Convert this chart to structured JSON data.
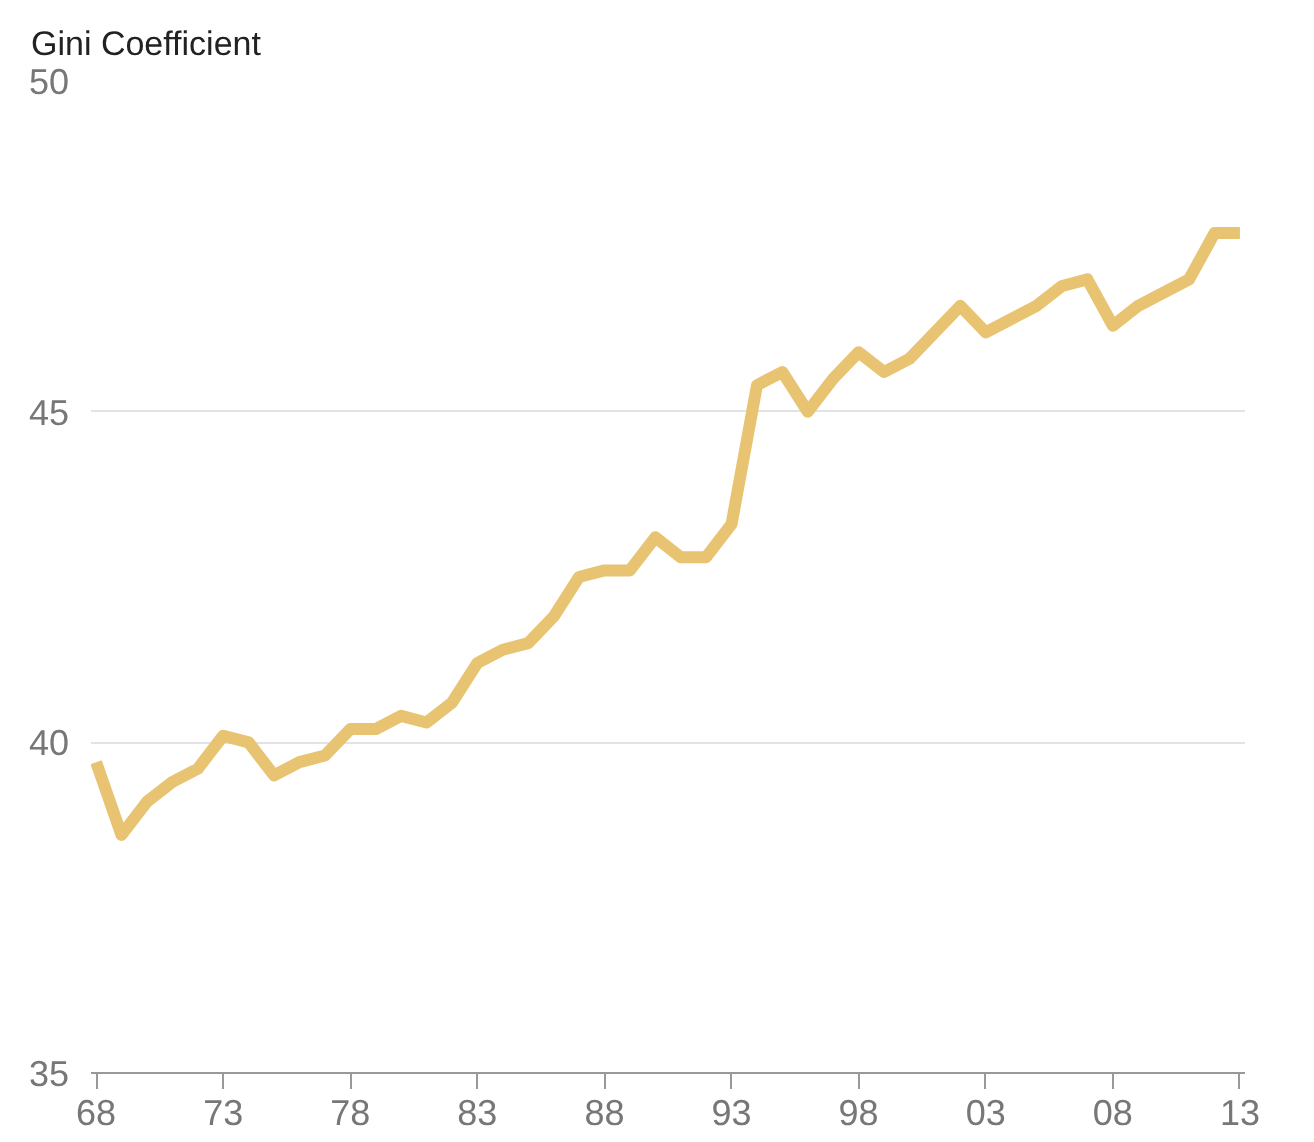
{
  "chart_data": {
    "type": "line",
    "ylabel": "Gini Coefficient",
    "x": [
      1968,
      1969,
      1970,
      1971,
      1972,
      1973,
      1974,
      1975,
      1976,
      1977,
      1978,
      1979,
      1980,
      1981,
      1982,
      1983,
      1984,
      1985,
      1986,
      1987,
      1988,
      1989,
      1990,
      1991,
      1992,
      1993,
      1994,
      1995,
      1996,
      1997,
      1998,
      1999,
      2000,
      2001,
      2002,
      2003,
      2004,
      2005,
      2006,
      2007,
      2008,
      2009,
      2010,
      2011,
      2012,
      2013
    ],
    "series": [
      {
        "color": "#e8c472",
        "values": [
          39.7,
          38.6,
          39.1,
          39.4,
          39.6,
          40.1,
          40.0,
          39.5,
          39.7,
          39.8,
          40.2,
          40.2,
          40.4,
          40.3,
          40.6,
          41.2,
          41.4,
          41.5,
          41.9,
          42.5,
          42.6,
          42.6,
          43.1,
          42.8,
          42.8,
          43.3,
          45.4,
          45.6,
          45.0,
          45.5,
          45.9,
          45.6,
          45.8,
          46.2,
          46.6,
          46.2,
          46.4,
          46.6,
          46.9,
          47.0,
          46.3,
          46.6,
          46.8,
          47.0,
          47.7,
          47.7
        ]
      }
    ],
    "xlim": [
      1967.8,
      2013.2
    ],
    "ylim": [
      35,
      50
    ],
    "xticks": [
      {
        "value": 1968,
        "label": "68"
      },
      {
        "value": 1973,
        "label": "73"
      },
      {
        "value": 1978,
        "label": "78"
      },
      {
        "value": 1983,
        "label": "83"
      },
      {
        "value": 1988,
        "label": "88"
      },
      {
        "value": 1993,
        "label": "93"
      },
      {
        "value": 1998,
        "label": "98"
      },
      {
        "value": 2003,
        "label": "03"
      },
      {
        "value": 2008,
        "label": "08"
      },
      {
        "value": 2013,
        "label": "13"
      }
    ],
    "yticks": [
      35,
      40,
      45,
      50
    ],
    "grid": "y",
    "marker": "none",
    "line_style": "solid"
  }
}
